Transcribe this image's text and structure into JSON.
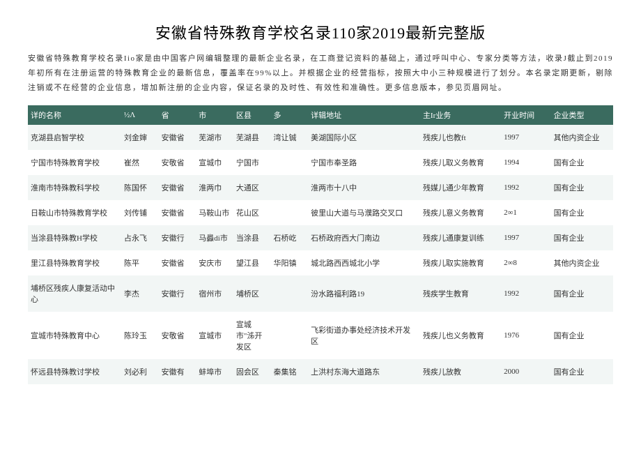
{
  "title": "安徽省特殊教育学校名录110家2019最新完整版",
  "intro": "安徽省特殊教育学校名录Iio家是由中国客户网编辑整理的最新企业名录，在工商登记资料的基础上，通过呼叫中心、专家分类等方法，收录J截止到2019年初所有在注册运营的特殊教育企业的最新信息，覆盖率在99%以上。并根据企业的经营指标，按照大中小三种规模进行了划分。本名录定期更新，剔除注销或不在经营的企业信息，增加新注册的企业内容，保证名录的及时性、有效性和准确性。更多信息版本，参见页眉网址。",
  "columns": [
    "详的名称",
    "½Λ",
    "省",
    "市",
    "区县",
    "多",
    "详辑地址",
    "主Ir业务",
    "开业时间",
    "企业类型"
  ],
  "header_bg": "#3a6b5f",
  "header_fg": "#ffffff",
  "row_even_bg": "#f2f6f5",
  "row_odd_bg": "#ffffff",
  "rows": [
    [
      "克湖县启智学校",
      "刘金婶",
      "安徽省",
      "芜湖市",
      "芜湖县",
      "湾让铖",
      "美湖国际小区",
      "残疾儿也教ft",
      "1997",
      "其他内资企业"
    ],
    [
      "宁国市特殊教育学校",
      "崔然",
      "安敬省",
      "宣城巾",
      "宁国市",
      "",
      "宁国市奉圣路",
      "残疾儿取义务教育",
      "1994",
      "国有企业"
    ],
    [
      "淮南市特殊教科学校",
      "陈国怀",
      "安徽省",
      "淮两巾",
      "大通区",
      "",
      "淮两市十八中",
      "残媒儿通少年教育",
      "1992",
      "国有企业"
    ],
    [
      "日鞍山市特殊教育学校",
      "刘传铺",
      "安徽省",
      "马鞍山市",
      "花山区",
      "",
      "彼里山大道与马濮路交叉口",
      "残疾儿意义务教育",
      "2∞1",
      "国有企业"
    ],
    [
      "当涂县特殊教H学校",
      "占永飞",
      "安徽行",
      "马灥di市",
      "当涂县",
      "石桥屹",
      "石桥政府西大门南边",
      "残疾儿通康复训练",
      "1997",
      "国有企业"
    ],
    [
      "里江县特殊教育学校",
      "陈平",
      "安徽省",
      "安庆市",
      "望江县",
      "华阳镇",
      "城北路西西城北小学",
      "残疾儿取实施教育",
      "2∞8",
      "其他内资企业"
    ],
    [
      "埔桥区残疾人康复活动中心",
      "李杰",
      "安徽行",
      "宿州市",
      "埔桥区",
      "",
      "汾水路福利路19",
      "残疾学生教育",
      "1992",
      "国有企业"
    ],
    [
      "宣城市特殊教育中心",
      "陈玲玉",
      "安敬省",
      "宣城市",
      "宣城市\"泲开发区",
      "",
      "飞彩街道办事处经济技术开发区",
      "残疾儿也义务教育",
      "1976",
      "国有企业"
    ],
    [
      "怀远县特殊教讨学校",
      "刘必利",
      "安徽有",
      "蚌埠市",
      "固会区",
      "秦集铭",
      "上洪村东海大道路东",
      "残疾儿放教",
      "2000",
      "国有企业"
    ]
  ]
}
